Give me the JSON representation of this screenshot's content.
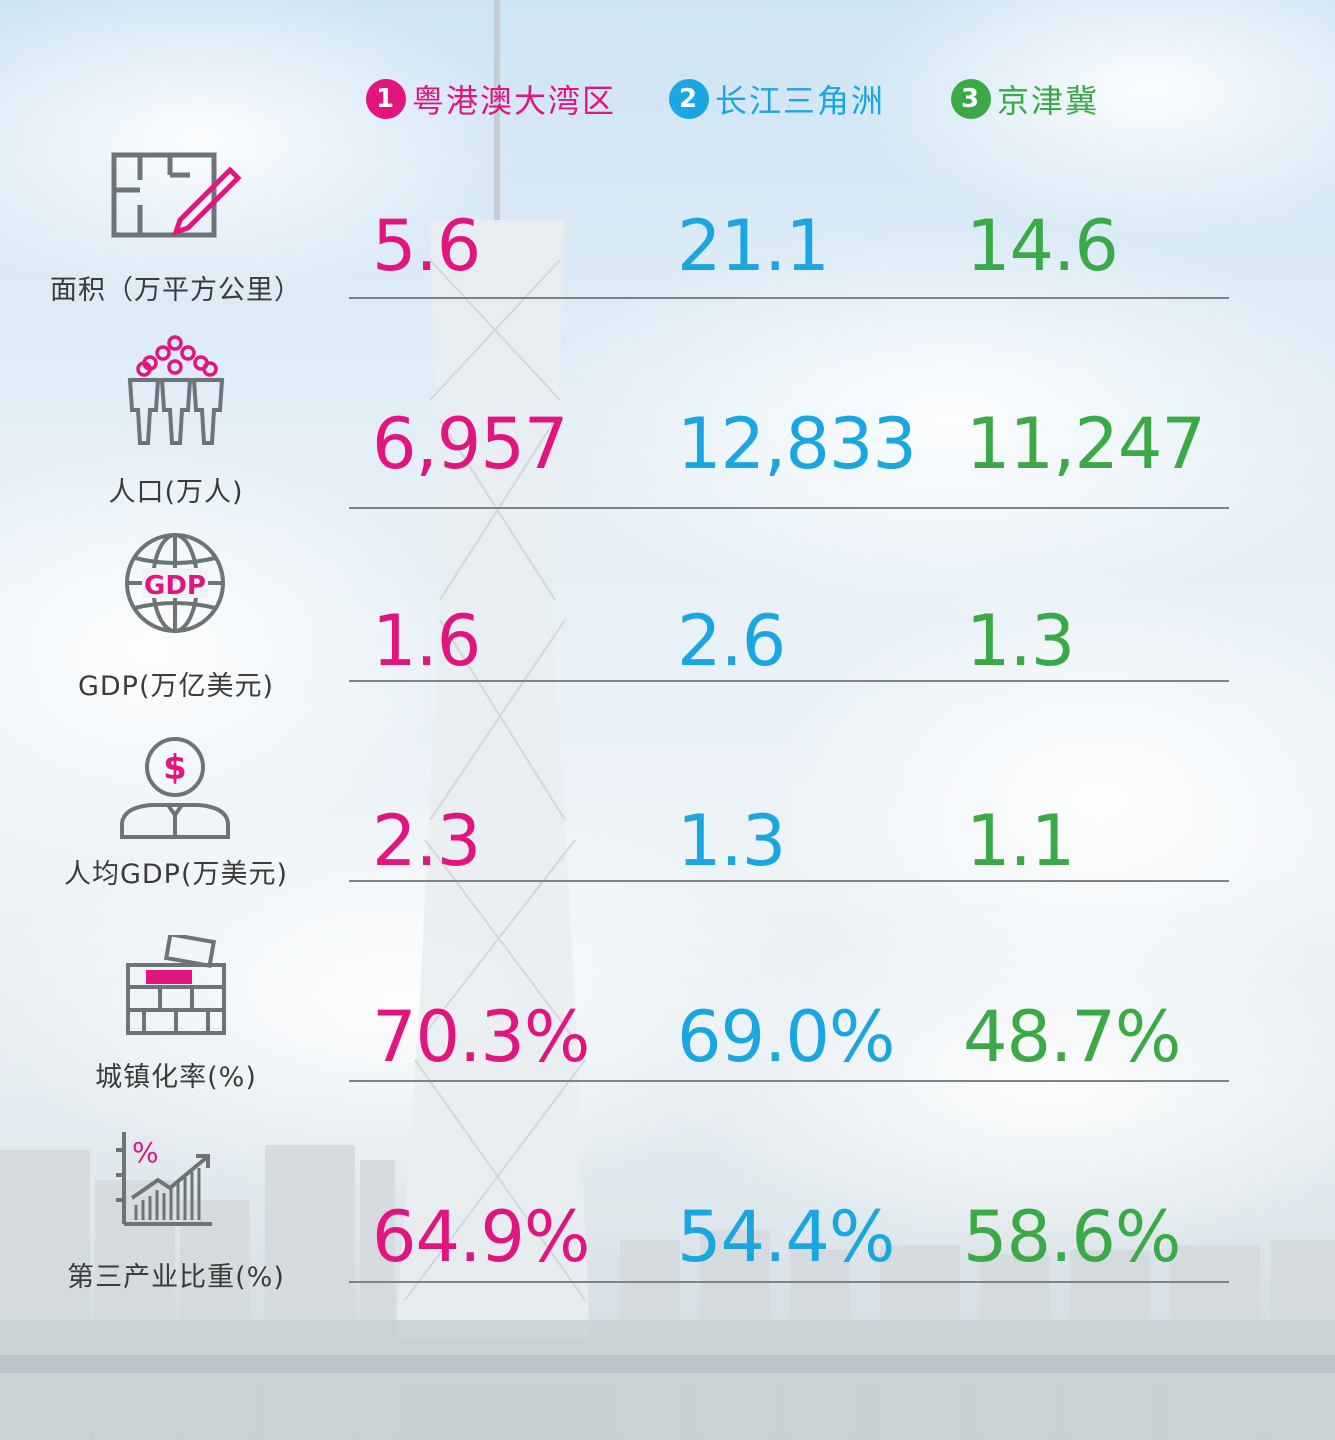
{
  "colors": {
    "region1": "#e2157f",
    "region2": "#1aa6e0",
    "region3": "#3aaa47",
    "text": "#3b3b3b",
    "icon": "#6e7376"
  },
  "legend": [
    {
      "num": "1",
      "name": "粤港澳大湾区"
    },
    {
      "num": "2",
      "name": "长江三角洲"
    },
    {
      "num": "3",
      "name": "京津冀"
    }
  ],
  "chart_data": {
    "type": "table",
    "columns": [
      "粤港澳大湾区",
      "长江三角洲",
      "京津冀"
    ],
    "rows": [
      {
        "label": "面积（万平方公里）",
        "icon": "floorplan-pencil-icon",
        "values": [
          "5.6",
          "21.1",
          "14.6"
        ]
      },
      {
        "label": "人口(万人)",
        "icon": "people-icon",
        "values": [
          "6,957",
          "12,833",
          "11,247"
        ]
      },
      {
        "label": "GDP(万亿美元)",
        "icon": "globe-gdp-icon",
        "icon_text": "GDP",
        "values": [
          "1.6",
          "2.6",
          "1.3"
        ]
      },
      {
        "label": "人均GDP(万美元)",
        "icon": "dollar-person-icon",
        "icon_text": "$",
        "values": [
          "2.3",
          "1.3",
          "1.1"
        ]
      },
      {
        "label": "城镇化率(%)",
        "icon": "brick-wall-icon",
        "values": [
          "70.3%",
          "69.0%",
          "48.7%"
        ]
      },
      {
        "label": "第三产业比重(%)",
        "icon": "growth-chart-icon",
        "icon_text": "%",
        "values": [
          "64.9%",
          "54.4%",
          "58.6%"
        ]
      }
    ]
  }
}
